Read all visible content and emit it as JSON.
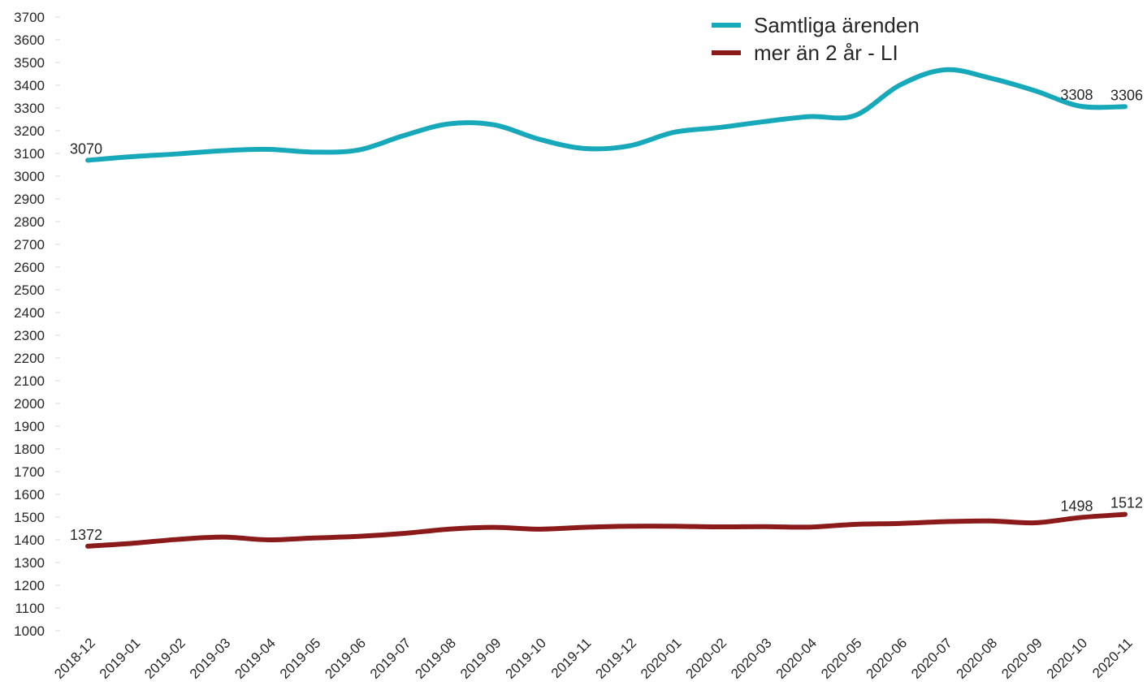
{
  "chart_data": {
    "type": "line",
    "title": "",
    "xlabel": "",
    "ylabel": "",
    "ylim": [
      1000,
      3700
    ],
    "ytick_step": 100,
    "grid": false,
    "legend_position": "top-right",
    "categories": [
      "2018-12",
      "2019-01",
      "2019-02",
      "2019-03",
      "2019-04",
      "2019-05",
      "2019-06",
      "2019-07",
      "2019-08",
      "2019-09",
      "2019-10",
      "2019-11",
      "2019-12",
      "2020-01",
      "2020-02",
      "2020-03",
      "2020-04",
      "2020-05",
      "2020-06",
      "2020-07",
      "2020-08",
      "2020-09",
      "2020-10",
      "2020-11"
    ],
    "series": [
      {
        "name": "Samtliga ärenden",
        "color": "#17A9B9",
        "values": [
          3070,
          3086,
          3098,
          3112,
          3118,
          3106,
          3115,
          3178,
          3230,
          3226,
          3163,
          3122,
          3133,
          3193,
          3214,
          3240,
          3262,
          3266,
          3400,
          3468,
          3432,
          3376,
          3308,
          3306
        ],
        "labels": [
          {
            "index": 0,
            "text": "3070"
          },
          {
            "index": 22,
            "text": "3308"
          },
          {
            "index": 23,
            "text": "3306"
          }
        ]
      },
      {
        "name": "mer än 2 år - LI",
        "color": "#8B1A1A",
        "values": [
          1372,
          1385,
          1402,
          1412,
          1400,
          1408,
          1415,
          1428,
          1447,
          1455,
          1447,
          1455,
          1460,
          1460,
          1457,
          1458,
          1456,
          1468,
          1472,
          1480,
          1483,
          1475,
          1498,
          1512
        ],
        "labels": [
          {
            "index": 0,
            "text": "1372"
          },
          {
            "index": 22,
            "text": "1498"
          },
          {
            "index": 23,
            "text": "1512"
          }
        ]
      }
    ]
  }
}
